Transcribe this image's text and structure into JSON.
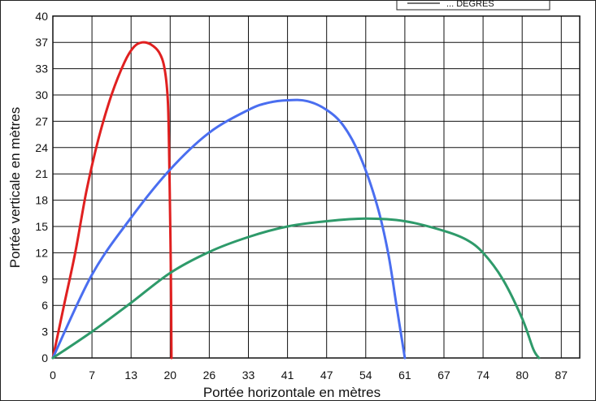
{
  "chart_data": {
    "type": "line",
    "xlabel": "Portée horizontale en mètres",
    "ylabel": "Portée verticale en mètres",
    "x_ticks": [
      0,
      7,
      13,
      20,
      26,
      33,
      41,
      47,
      54,
      61,
      67,
      74,
      80,
      87
    ],
    "y_ticks": [
      0,
      3,
      6,
      9,
      12,
      15,
      18,
      21,
      24,
      27,
      30,
      33,
      37,
      40
    ],
    "grid": true,
    "legend_position": "top-right",
    "legend_text": "... DEGRES",
    "series": [
      {
        "color": "#e02020",
        "points": [
          [
            0,
            0
          ],
          [
            2,
            6
          ],
          [
            4,
            12
          ],
          [
            6,
            19
          ],
          [
            8,
            25
          ],
          [
            10,
            30
          ],
          [
            12,
            34
          ],
          [
            13.5,
            36.3
          ],
          [
            15,
            37
          ],
          [
            16.5,
            36.7
          ],
          [
            18,
            35.5
          ],
          [
            19,
            33
          ],
          [
            19.6,
            29
          ],
          [
            19.9,
            20
          ],
          [
            20.1,
            10
          ],
          [
            20.2,
            0
          ]
        ]
      },
      {
        "color": "#4a6ef0",
        "points": [
          [
            0,
            0
          ],
          [
            7,
            9.5
          ],
          [
            13,
            16
          ],
          [
            20,
            21.5
          ],
          [
            26,
            25.7
          ],
          [
            33,
            28.3
          ],
          [
            37,
            29.1
          ],
          [
            41,
            29.4
          ],
          [
            44,
            29.3
          ],
          [
            47,
            28.3
          ],
          [
            50,
            26.5
          ],
          [
            53,
            23
          ],
          [
            56,
            17.5
          ],
          [
            58,
            12
          ],
          [
            59.5,
            6
          ],
          [
            61,
            0
          ]
        ]
      },
      {
        "color": "#2e9a6a",
        "points": [
          [
            0,
            0
          ],
          [
            7,
            3
          ],
          [
            13,
            6.3
          ],
          [
            20,
            9.7
          ],
          [
            26,
            12.1
          ],
          [
            33,
            13.8
          ],
          [
            41,
            15
          ],
          [
            47,
            15.6
          ],
          [
            54,
            15.9
          ],
          [
            61,
            15.6
          ],
          [
            67,
            14.5
          ],
          [
            71,
            13.5
          ],
          [
            74,
            12
          ],
          [
            77,
            9
          ],
          [
            80,
            4.5
          ],
          [
            82,
            1
          ],
          [
            83,
            0
          ]
        ]
      }
    ]
  }
}
